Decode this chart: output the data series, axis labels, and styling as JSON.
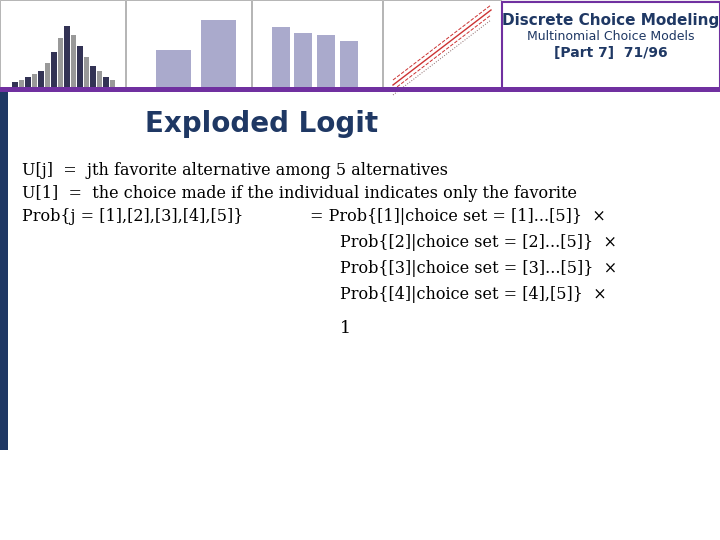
{
  "title": "Exploded Logit",
  "title_color": "#1F3864",
  "title_fontsize": 20,
  "header_title": "Discrete Choice Modeling",
  "header_subtitle1": "Multinomial Choice Models",
  "header_subtitle2": "[Part 7]  71/96",
  "header_bg_color": "#FFFFFF",
  "header_border_color": "#7030A0",
  "left_bar_color": "#1F3864",
  "purple_bar_color": "#7030A0",
  "body_bg_color": "#FFFFFF",
  "text_color": "#000000",
  "chart_bg": "#EEEEF5",
  "chart_border": "#AAAAAA",
  "bar_color1": "#8888BB",
  "line1": "U[j]  =  jth favorite alternative among 5 alternatives",
  "line2": "U[1]  =  the choice made if the individual indicates only the favorite",
  "line3_left": "Prob{j = [1],[2],[3],[4],[5]}",
  "line3_right": "= Prob{[1]|choice set = [1]...[5]}  ×",
  "line4": "Prob{[2]|choice set = [2]...[5]}  ×",
  "line5": "Prob{[3]|choice set = [3]...[5]}  ×",
  "line6": "Prob{[4]|choice set = [4],[5]}  ×",
  "line7": "1",
  "body_fontsize": 11.5
}
